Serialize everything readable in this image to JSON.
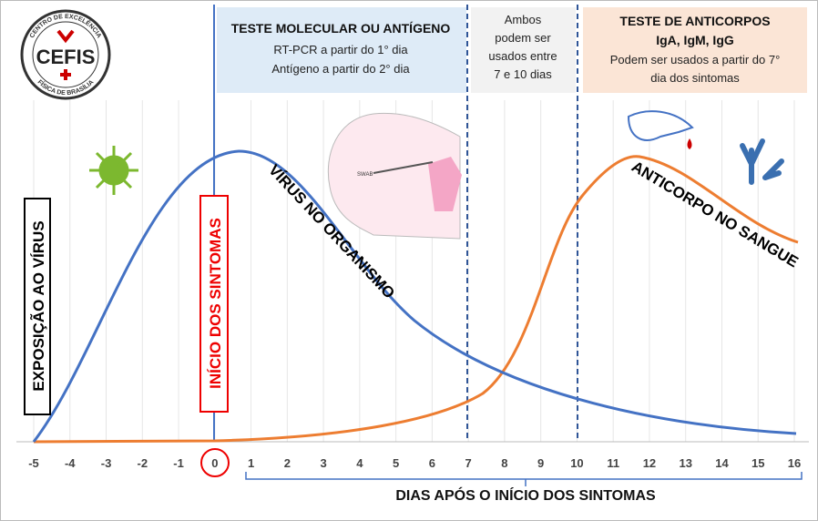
{
  "logo": {
    "ring_top": "CENTRO DE EXCELÊNCIA",
    "name": "CEFIS",
    "ring_bottom": "FÍSICA DE BRASÍLIA"
  },
  "boxes": [
    {
      "title": "TESTE MOLECULAR OU ANTÍGENO",
      "lines": [
        "RT-PCR a partir do 1° dia",
        "Antígeno a partir do 2° dia"
      ]
    },
    {
      "lines": [
        "Ambos",
        "podem ser",
        "usados entre",
        "7 e 10 dias"
      ]
    },
    {
      "title": "TESTE DE ANTICORPOS",
      "subtitle": "IgA, IgM, IgG",
      "lines": [
        "Podem ser usados a partir do 7°",
        "dia dos sintomas"
      ]
    }
  ],
  "labels": {
    "exposure": "EXPOSIÇÃO AO VÍRUS",
    "onset": "INÍCIO DOS SINTOMAS",
    "virus": "VÍRUS NO ORGANISMO",
    "antibody": "ANTICORPO NO SANGUE",
    "swab": "SWAB"
  },
  "axis": {
    "ticks": [
      -5,
      -4,
      -3,
      -2,
      -1,
      0,
      1,
      2,
      3,
      4,
      5,
      6,
      7,
      8,
      9,
      10,
      11,
      12,
      13,
      14,
      15,
      16
    ],
    "label": "DIAS APÓS O INÍCIO DOS SINTOMAS"
  }
}
